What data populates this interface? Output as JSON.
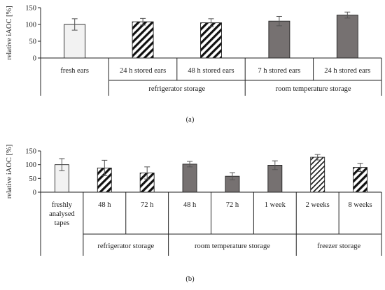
{
  "chart_data": [
    {
      "type": "bar",
      "panel_label": "(a)",
      "ylabel": "relative iAOC [%]",
      "ylim": [
        0,
        150
      ],
      "yticks": [
        0,
        50,
        100,
        150
      ],
      "categories": [
        "fresh ears",
        "24 h stored ears",
        "48 h stored ears",
        "7 h stored ears",
        "24 h stored ears"
      ],
      "values": [
        100,
        108,
        105,
        110,
        128
      ],
      "errors": [
        17,
        10,
        12,
        14,
        9
      ],
      "patterns": [
        "light",
        "hatch",
        "hatch",
        "dark",
        "dark"
      ],
      "groups": [
        {
          "label": "refrigerator storage",
          "from": 1,
          "to": 2
        },
        {
          "label": "room temperature storage",
          "from": 3,
          "to": 4
        }
      ]
    },
    {
      "type": "bar",
      "panel_label": "(b)",
      "ylabel": "relative iAOC [%]",
      "ylim": [
        0,
        150
      ],
      "yticks": [
        0,
        50,
        100,
        150
      ],
      "categories": [
        [
          "freshly",
          "analysed",
          "tapes"
        ],
        [
          "48 h"
        ],
        [
          "72 h"
        ],
        [
          "48 h"
        ],
        [
          "72 h"
        ],
        [
          "1 week"
        ],
        [
          "2 weeks"
        ],
        [
          "8 weeks"
        ]
      ],
      "values": [
        100,
        88,
        70,
        102,
        58,
        98,
        127,
        90
      ],
      "errors": [
        22,
        28,
        22,
        10,
        13,
        16,
        10,
        15
      ],
      "patterns": [
        "light",
        "hatch",
        "hatch",
        "dark",
        "dark",
        "dark",
        "hatchDense",
        "hatch"
      ],
      "groups": [
        {
          "label": "refrigerator storage",
          "from": 1,
          "to": 2
        },
        {
          "label": "room temperature storage",
          "from": 3,
          "to": 5
        },
        {
          "label": "freezer storage",
          "from": 6,
          "to": 7
        }
      ]
    }
  ]
}
